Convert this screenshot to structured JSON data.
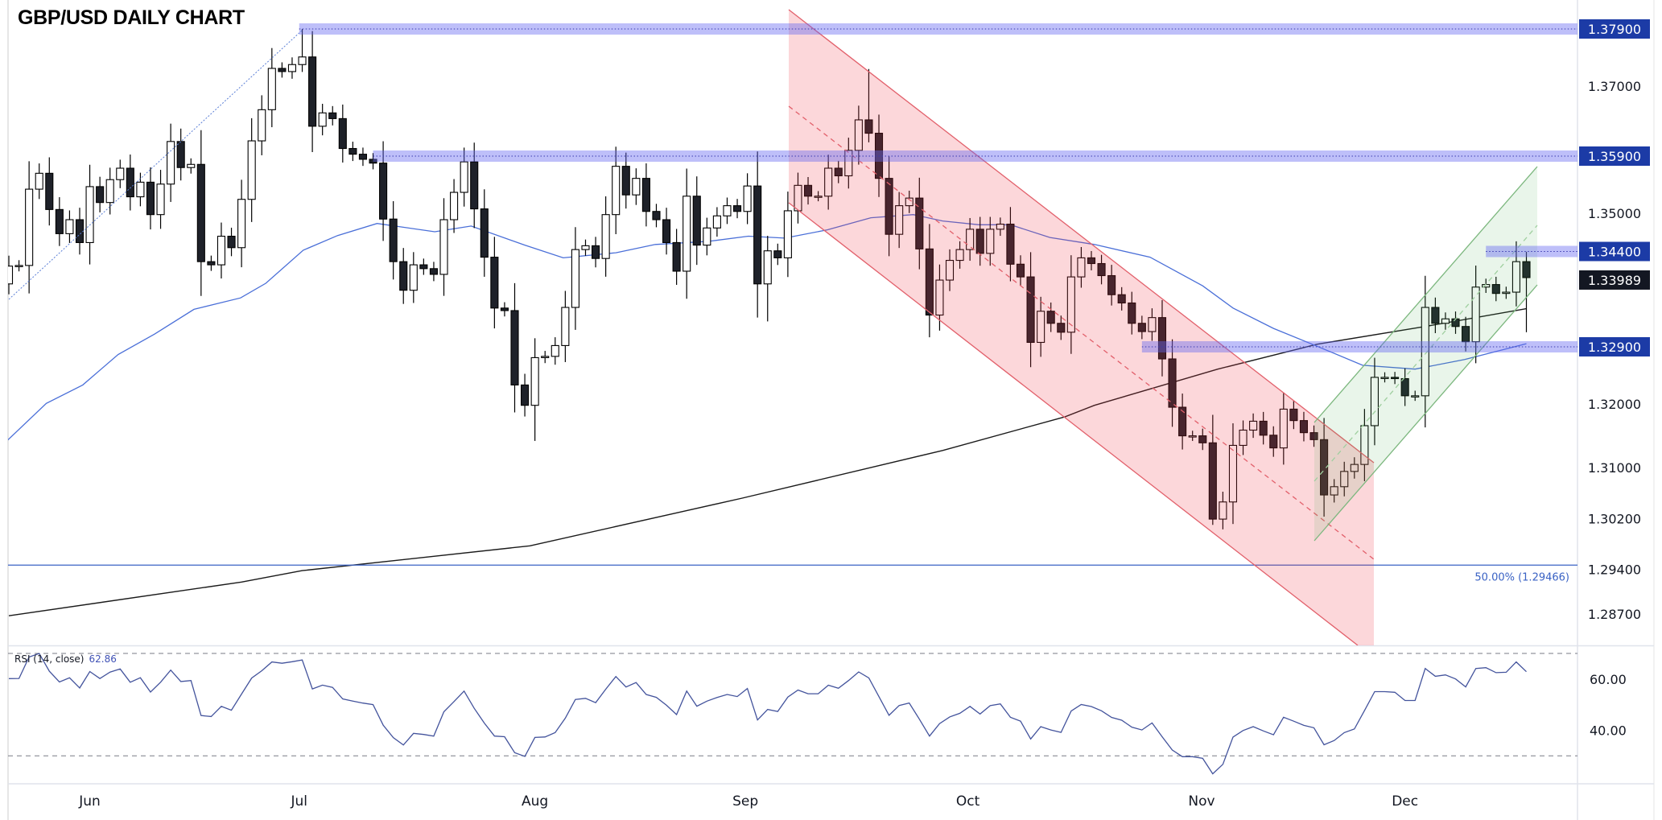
{
  "header": {
    "title": "GBP/USD DAILY CHART"
  },
  "chart_data": {
    "type": "candlestick",
    "title": "GBP/USD DAILY CHART",
    "first_open": 1.3389,
    "closes": [
      1.3417,
      1.3418,
      1.3538,
      1.3563,
      1.3506,
      1.3468,
      1.349,
      1.3454,
      1.3542,
      1.3517,
      1.3553,
      1.3571,
      1.3526,
      1.3549,
      1.3498,
      1.3546,
      1.3613,
      1.3572,
      1.3577,
      1.3424,
      1.3419,
      1.3464,
      1.3446,
      1.3522,
      1.3614,
      1.3663,
      1.3728,
      1.3723,
      1.3734,
      1.3746,
      1.3637,
      1.3658,
      1.3649,
      1.3602,
      1.3593,
      1.3585,
      1.3579,
      1.3491,
      1.3424,
      1.3379,
      1.3419,
      1.3413,
      1.3404,
      1.349,
      1.3533,
      1.3581,
      1.3507,
      1.3431,
      1.3351,
      1.3347,
      1.323,
      1.3198,
      1.3273,
      1.3275,
      1.3292,
      1.3352,
      1.3443,
      1.3449,
      1.3429,
      1.3498,
      1.3574,
      1.3529,
      1.3555,
      1.3503,
      1.349,
      1.3454,
      1.3409,
      1.3527,
      1.345,
      1.3477,
      1.3496,
      1.3512,
      1.3503,
      1.3543,
      1.3389,
      1.3441,
      1.343,
      1.3504,
      1.3544,
      1.3527,
      1.3527,
      1.3571,
      1.3559,
      1.3599,
      1.3647,
      1.3626,
      1.3555,
      1.3467,
      1.3512,
      1.3524,
      1.3444,
      1.334,
      1.3395,
      1.3426,
      1.3443,
      1.3475,
      1.3437,
      1.3475,
      1.3483,
      1.342,
      1.34,
      1.3297,
      1.3346,
      1.3327,
      1.3313,
      1.34,
      1.343,
      1.3421,
      1.3402,
      1.3372,
      1.3359,
      1.3327,
      1.3314,
      1.3336,
      1.3271,
      1.3195,
      1.315,
      1.315,
      1.3139,
      1.3019,
      1.3046,
      1.3135,
      1.3159,
      1.3173,
      1.3151,
      1.3131,
      1.3192,
      1.3174,
      1.3155,
      1.3144,
      1.3057,
      1.307,
      1.3094,
      1.3105,
      1.3166,
      1.3242,
      1.3242,
      1.324,
      1.3213,
      1.3213,
      1.3352,
      1.3327,
      1.3334,
      1.3322,
      1.3298,
      1.3384,
      1.3388,
      1.3374,
      1.3376,
      1.3424,
      1.33989
    ],
    "wick_extremes": [
      [
        29,
        1.379,
        null
      ],
      [
        26,
        1.376,
        null
      ],
      [
        52,
        null,
        1.3142
      ],
      [
        74,
        null,
        1.3336
      ],
      [
        75,
        null,
        1.333
      ],
      [
        85,
        1.3727,
        null
      ],
      [
        91,
        null,
        1.3305
      ],
      [
        119,
        null,
        1.301
      ],
      [
        149,
        1.3456,
        null
      ],
      [
        150,
        null,
        1.3313
      ]
    ],
    "sma50": [
      [
        -0.2,
        1.3142
      ],
      [
        3.7,
        1.3201
      ],
      [
        7.3,
        1.323
      ],
      [
        10.8,
        1.3278
      ],
      [
        14.4,
        1.331
      ],
      [
        18.3,
        1.3349
      ],
      [
        22.9,
        1.3367
      ],
      [
        25.4,
        1.339
      ],
      [
        29.1,
        1.3442
      ],
      [
        32.5,
        1.3465
      ],
      [
        36.4,
        1.3484
      ],
      [
        42.1,
        1.3471
      ],
      [
        45.7,
        1.348
      ],
      [
        51.0,
        1.345
      ],
      [
        54.8,
        1.343
      ],
      [
        60.0,
        1.3438
      ],
      [
        63.9,
        1.3451
      ],
      [
        69.2,
        1.3456
      ],
      [
        73.1,
        1.3464
      ],
      [
        76.7,
        1.3461
      ],
      [
        80.9,
        1.3474
      ],
      [
        85.2,
        1.3493
      ],
      [
        89.4,
        1.3498
      ],
      [
        92.3,
        1.3488
      ],
      [
        95.9,
        1.3482
      ],
      [
        99.0,
        1.3482
      ],
      [
        102.9,
        1.3462
      ],
      [
        107.3,
        1.3451
      ],
      [
        112.8,
        1.3431
      ],
      [
        118.0,
        1.3386
      ],
      [
        121.0,
        1.3351
      ],
      [
        125.0,
        1.3319
      ],
      [
        129.3,
        1.3291
      ],
      [
        133.8,
        1.3261
      ],
      [
        139.0,
        1.3255
      ],
      [
        143.9,
        1.327
      ],
      [
        150.0,
        1.3295
      ]
    ],
    "sma200": [
      [
        0,
        1.2867
      ],
      [
        23,
        1.292
      ],
      [
        29,
        1.2938
      ],
      [
        51.5,
        1.2977
      ],
      [
        72.5,
        1.3052
      ],
      [
        92.3,
        1.3127
      ],
      [
        104.4,
        1.318
      ],
      [
        107.3,
        1.3198
      ],
      [
        119.5,
        1.3255
      ],
      [
        129.3,
        1.3294
      ],
      [
        140.0,
        1.3322
      ],
      [
        150.0,
        1.335
      ]
    ],
    "levels": [
      {
        "value": 1.379,
        "label": "1.37900",
        "start_index": 28.7
      },
      {
        "value": 1.359,
        "label": "1.35900",
        "start_index": 36
      },
      {
        "value": 1.344,
        "label": "1.34400",
        "start_index": 146
      },
      {
        "value": 1.329,
        "label": "1.32900",
        "start_index": 112
      }
    ],
    "last_price": {
      "value": 1.33989,
      "label": "1.33989"
    },
    "fib": {
      "value": 1.29466,
      "label": "50.00% (1.29466)"
    },
    "y_ticks": [
      {
        "value": 1.37,
        "label": "1.37000"
      },
      {
        "value": 1.35,
        "label": "1.35000"
      },
      {
        "value": 1.32,
        "label": "1.32000"
      },
      {
        "value": 1.31,
        "label": "1.31000"
      },
      {
        "value": 1.302,
        "label": "1.30200"
      },
      {
        "value": 1.294,
        "label": "1.29400"
      },
      {
        "value": 1.287,
        "label": "1.28700"
      }
    ],
    "ylim": [
      1.283,
      1.3835
    ],
    "month_ticks": [
      {
        "label": "Jun",
        "index": 8
      },
      {
        "label": "Jul",
        "index": 28.7
      },
      {
        "label": "Aug",
        "index": 52
      },
      {
        "label": "Sep",
        "index": 72.8
      },
      {
        "label": "Oct",
        "index": 94.8
      },
      {
        "label": "Nov",
        "index": 117.9
      },
      {
        "label": "Dec",
        "index": 138
      }
    ],
    "rsi": {
      "label": "RSI (14, close)",
      "value": "62.86",
      "period": 14,
      "ticks": [
        {
          "value": 60,
          "label": "60.00"
        },
        {
          "value": 40,
          "label": "40.00"
        }
      ],
      "bands": [
        70,
        30
      ]
    },
    "colors": {
      "up_body": "#ffffff",
      "down_body": "#1e2129",
      "sma50": "#4a6fd8",
      "sma200": "#1a1a1a",
      "level_band": "#6466f0",
      "level_label": "#1c3ba6",
      "last_label": "#131722",
      "fib": "#3a62c4",
      "rsi_line": "#43539c",
      "bear_channel": "#f23645",
      "bull_channel": "#4caf50"
    }
  }
}
